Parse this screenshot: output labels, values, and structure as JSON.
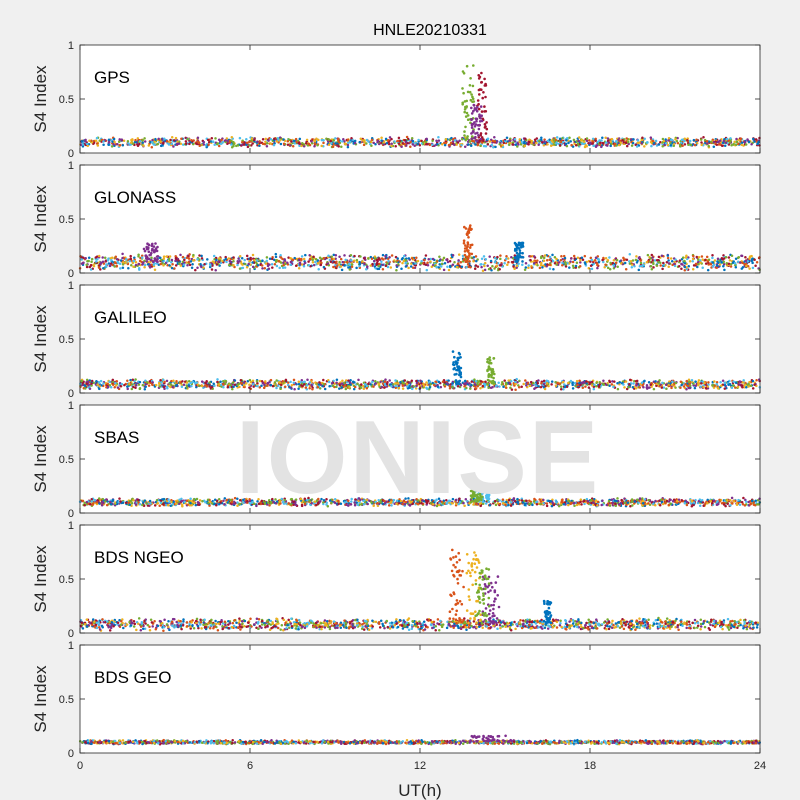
{
  "chart_data": {
    "type": "scatter",
    "title": "HNLE20210331",
    "xlabel": "UT(h)",
    "ylabel": "S4 Index",
    "xlim": [
      0,
      24
    ],
    "ylim": [
      0,
      1
    ],
    "x_ticks": [
      "0",
      "6",
      "12",
      "18",
      "24"
    ],
    "y_ticks": [
      "0",
      "0.5",
      "1"
    ],
    "watermark": "IONISE",
    "series_colors": [
      "#0072BD",
      "#D95319",
      "#EDB120",
      "#7E2F8E",
      "#77AC30",
      "#4DBEEE",
      "#A2142F"
    ],
    "panels": [
      {
        "label": "GPS",
        "baseline": 0.1,
        "spread": 0.05,
        "events": [
          {
            "t": 13.7,
            "peak": 0.82,
            "width": 0.4,
            "color": "#77AC30"
          },
          {
            "t": 14.2,
            "peak": 0.78,
            "width": 0.35,
            "color": "#A2142F"
          },
          {
            "t": 14.0,
            "peak": 0.45,
            "width": 0.4,
            "color": "#7E2F8E"
          }
        ]
      },
      {
        "label": "GLONASS",
        "baseline": 0.1,
        "spread": 0.08,
        "events": [
          {
            "t": 13.7,
            "peak": 0.45,
            "width": 0.3,
            "color": "#D95319"
          },
          {
            "t": 15.5,
            "peak": 0.28,
            "width": 0.3,
            "color": "#0072BD"
          },
          {
            "t": 2.5,
            "peak": 0.28,
            "width": 0.5,
            "color": "#7E2F8E"
          }
        ]
      },
      {
        "label": "GALILEO",
        "baseline": 0.08,
        "spread": 0.05,
        "events": [
          {
            "t": 13.3,
            "peak": 0.42,
            "width": 0.3,
            "color": "#0072BD"
          },
          {
            "t": 14.5,
            "peak": 0.33,
            "width": 0.25,
            "color": "#77AC30"
          }
        ]
      },
      {
        "label": "SBAS",
        "baseline": 0.1,
        "spread": 0.04,
        "events": [
          {
            "t": 14.2,
            "peak": 0.25,
            "width": 0.5,
            "color": "#4DBEEE"
          },
          {
            "t": 14.0,
            "peak": 0.22,
            "width": 0.4,
            "color": "#77AC30"
          }
        ]
      },
      {
        "label": "BDS NGEO",
        "baseline": 0.08,
        "spread": 0.06,
        "events": [
          {
            "t": 13.3,
            "peak": 0.8,
            "width": 0.5,
            "color": "#D95319"
          },
          {
            "t": 13.9,
            "peak": 0.75,
            "width": 0.5,
            "color": "#EDB120"
          },
          {
            "t": 14.5,
            "peak": 0.55,
            "width": 0.6,
            "color": "#7E2F8E"
          },
          {
            "t": 14.2,
            "peak": 0.6,
            "width": 0.5,
            "color": "#77AC30"
          },
          {
            "t": 16.5,
            "peak": 0.3,
            "width": 0.3,
            "color": "#0072BD"
          }
        ]
      },
      {
        "label": "BDS GEO",
        "baseline": 0.1,
        "spread": 0.02,
        "events": [
          {
            "t": 14.5,
            "peak": 0.16,
            "width": 1.5,
            "color": "#7E2F8E"
          }
        ]
      }
    ]
  }
}
